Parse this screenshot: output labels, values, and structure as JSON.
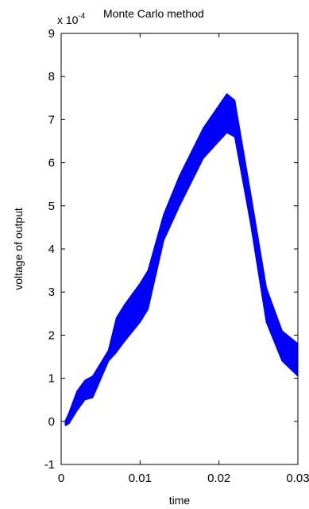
{
  "chart_data": {
    "type": "line",
    "title": "Monte Carlo method",
    "xlabel": "time",
    "ylabel": "voltage of output",
    "exponent_label": "x 10",
    "exponent_power": "-4",
    "xlim": [
      0,
      0.03
    ],
    "ylim": [
      -1,
      9
    ],
    "x_ticks": [
      0,
      0.01,
      0.02,
      0.03
    ],
    "x_tick_labels": [
      "0",
      "0.01",
      "0.02",
      "0.03"
    ],
    "y_ticks": [
      -1,
      0,
      1,
      2,
      3,
      4,
      5,
      6,
      7,
      8,
      9
    ],
    "y_tick_labels": [
      "-1",
      "0",
      "1",
      "2",
      "3",
      "4",
      "5",
      "6",
      "7",
      "8",
      "9"
    ],
    "grid": false,
    "series_color": "#0000ff",
    "num_runs": 40,
    "x": [
      0.0005,
      0.001,
      0.002,
      0.003,
      0.004,
      0.006,
      0.007,
      0.008,
      0.01,
      0.011,
      0.013,
      0.015,
      0.018,
      0.021,
      0.022,
      0.024,
      0.026,
      0.028,
      0.03
    ],
    "upper": [
      0.0,
      0.2,
      0.7,
      0.95,
      1.05,
      1.65,
      2.4,
      2.7,
      3.2,
      3.5,
      4.8,
      5.7,
      6.8,
      7.6,
      7.45,
      5.3,
      3.1,
      2.1,
      1.8
    ],
    "lower": [
      -0.1,
      -0.05,
      0.25,
      0.5,
      0.55,
      1.4,
      1.6,
      1.85,
      2.3,
      2.6,
      4.2,
      5.0,
      6.1,
      6.7,
      6.6,
      4.6,
      2.3,
      1.4,
      1.05
    ]
  }
}
